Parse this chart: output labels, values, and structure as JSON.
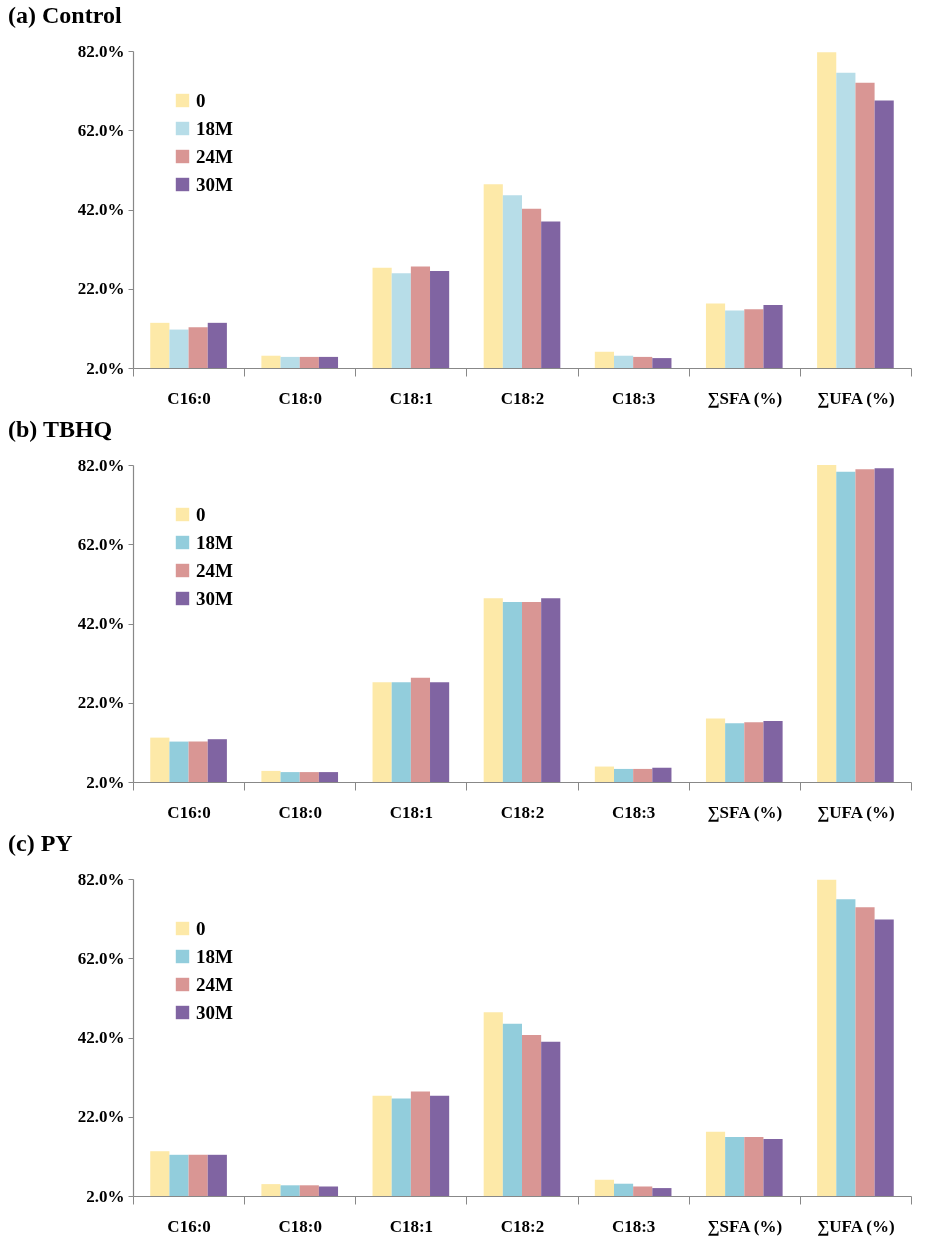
{
  "chart_data": [
    {
      "type": "bar",
      "title": "(a) Control",
      "categories": [
        "C16:0",
        "C18:0",
        "C18:1",
        "C18:2",
        "C18:3",
        "∑SFA (%)",
        "∑UFA (%)"
      ],
      "series": [
        {
          "name": "0",
          "color": "#fde9a8",
          "values": [
            13.4,
            5.1,
            27.3,
            48.4,
            6.1,
            18.3,
            81.7
          ]
        },
        {
          "name": "18M",
          "color": "#b7dde8",
          "values": [
            11.7,
            4.8,
            25.9,
            45.6,
            5.1,
            16.5,
            76.5
          ]
        },
        {
          "name": "24M",
          "color": "#d99694",
          "values": [
            12.3,
            4.8,
            27.6,
            42.2,
            4.8,
            16.8,
            74.0
          ]
        },
        {
          "name": "30M",
          "color": "#8064a2",
          "values": [
            13.4,
            4.8,
            26.5,
            39.0,
            4.5,
            17.9,
            69.5
          ]
        }
      ],
      "ylim": [
        2,
        82
      ],
      "yticks": [
        {
          "value": 2,
          "label": "2.0%"
        },
        {
          "value": 22,
          "label": "22.0%"
        },
        {
          "value": 42,
          "label": "42.0%"
        },
        {
          "value": 62,
          "label": "62.0%"
        },
        {
          "value": 82,
          "label": "82.0%"
        }
      ],
      "legend": "top left"
    },
    {
      "type": "bar",
      "title": "(b) TBHQ",
      "categories": [
        "C16:0",
        "C18:0",
        "C18:1",
        "C18:2",
        "C18:3",
        "∑SFA (%)",
        "∑UFA (%)"
      ],
      "series": [
        {
          "name": "0",
          "color": "#fde9a8",
          "values": [
            13.2,
            4.8,
            27.2,
            48.4,
            5.9,
            18.0,
            82.0
          ]
        },
        {
          "name": "18M",
          "color": "#92cddc",
          "values": [
            12.2,
            4.5,
            27.2,
            47.4,
            5.3,
            16.8,
            80.3
          ]
        },
        {
          "name": "24M",
          "color": "#d99694",
          "values": [
            12.2,
            4.5,
            28.3,
            47.4,
            5.3,
            17.1,
            80.9
          ]
        },
        {
          "name": "30M",
          "color": "#8064a2",
          "values": [
            12.8,
            4.5,
            27.2,
            48.4,
            5.6,
            17.4,
            81.2
          ]
        }
      ],
      "ylim": [
        2,
        82
      ],
      "yticks": [
        {
          "value": 2,
          "label": "2.0%"
        },
        {
          "value": 22,
          "label": "22.0%"
        },
        {
          "value": 42,
          "label": "42.0%"
        },
        {
          "value": 62,
          "label": "62.0%"
        },
        {
          "value": 82,
          "label": "82.0%"
        }
      ],
      "legend": "top left"
    },
    {
      "type": "bar",
      "title": "(c) PY",
      "categories": [
        "C16:0",
        "C18:0",
        "C18:1",
        "C18:2",
        "C18:3",
        "∑SFA (%)",
        "∑UFA (%)"
      ],
      "series": [
        {
          "name": "0",
          "color": "#fde9a8",
          "values": [
            13.3,
            5.0,
            27.3,
            48.4,
            6.1,
            18.2,
            81.8
          ]
        },
        {
          "name": "18M",
          "color": "#92cddc",
          "values": [
            12.4,
            4.7,
            26.6,
            45.5,
            5.1,
            16.9,
            76.9
          ]
        },
        {
          "name": "24M",
          "color": "#d99694",
          "values": [
            12.4,
            4.7,
            28.4,
            42.6,
            4.4,
            16.9,
            74.9
          ]
        },
        {
          "name": "30M",
          "color": "#8064a2",
          "values": [
            12.4,
            4.4,
            27.3,
            40.9,
            4.0,
            16.4,
            71.8
          ]
        }
      ],
      "ylim": [
        2,
        82
      ],
      "yticks": [
        {
          "value": 2,
          "label": "2.0%"
        },
        {
          "value": 22,
          "label": "22.0%"
        },
        {
          "value": 42,
          "label": "42.0%"
        },
        {
          "value": 62,
          "label": "62.0%"
        },
        {
          "value": 82,
          "label": "82.0%"
        }
      ],
      "legend": "top left"
    }
  ]
}
